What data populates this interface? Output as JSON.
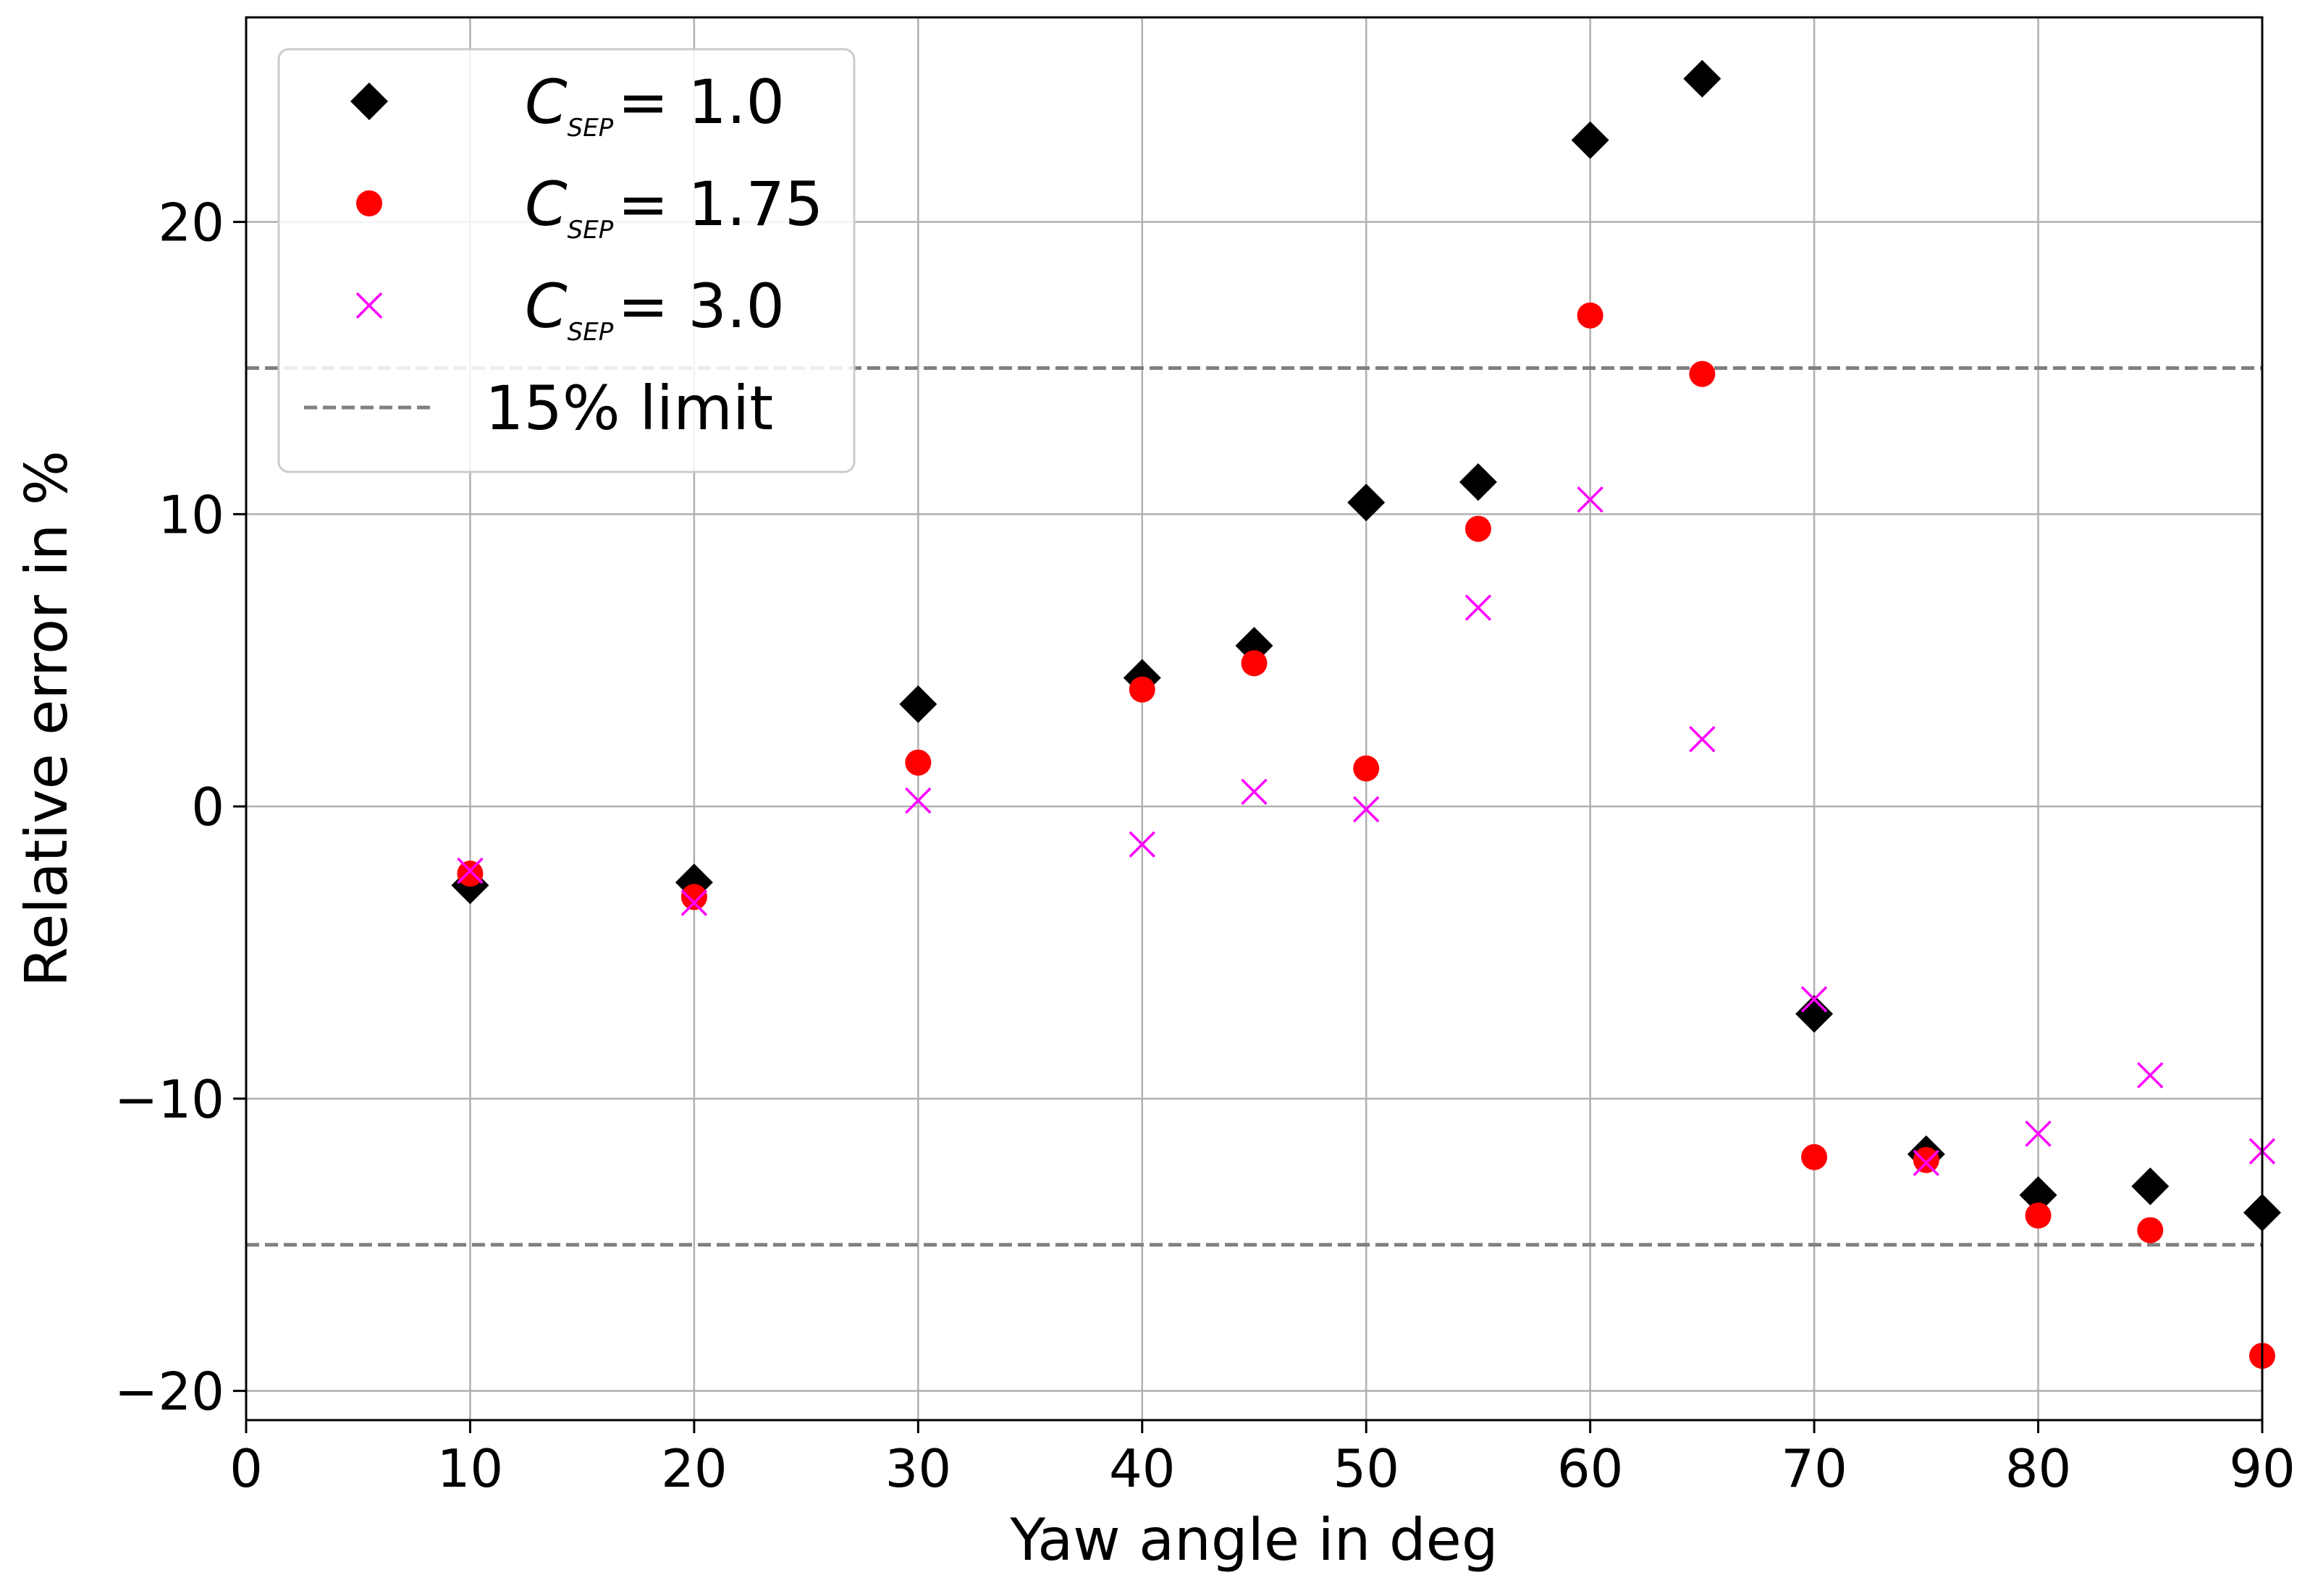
{
  "chart_data": {
    "type": "scatter",
    "title": "",
    "xlabel": "Yaw angle in deg",
    "ylabel": "Relative error in %",
    "xlim": [
      0,
      90
    ],
    "ylim": [
      -21,
      27
    ],
    "xticks": [
      0,
      10,
      20,
      30,
      40,
      50,
      60,
      70,
      80,
      90
    ],
    "xtick_labels": [
      "0",
      "10",
      "20",
      "30",
      "40",
      "50",
      "60",
      "70",
      "80",
      "90"
    ],
    "yticks": [
      -20,
      -10,
      0,
      10,
      20
    ],
    "ytick_labels": [
      "−20",
      "−10",
      "0",
      "10",
      "20"
    ],
    "grid": true,
    "legend_position": "top-left",
    "series": [
      {
        "name": "C_SEP = 1.0",
        "symbol": "C",
        "subscript": "SEP",
        "value_label": "= 1.0",
        "marker": "diamond",
        "color": "#000000",
        "x": [
          10,
          20,
          30,
          40,
          45,
          50,
          55,
          60,
          65,
          70,
          75,
          80,
          85,
          90
        ],
        "y": [
          -2.7,
          -2.6,
          3.5,
          4.4,
          5.5,
          10.4,
          11.1,
          22.8,
          24.9,
          -7.1,
          -11.9,
          -13.3,
          -13.0,
          -13.9
        ]
      },
      {
        "name": "C_SEP = 1.75",
        "symbol": "C",
        "subscript": "SEP",
        "value_label": "= 1.75",
        "marker": "circle",
        "color": "#ff0000",
        "x": [
          10,
          20,
          30,
          40,
          45,
          50,
          55,
          60,
          65,
          70,
          75,
          80,
          85,
          90
        ],
        "y": [
          -2.3,
          -3.1,
          1.5,
          4.0,
          4.9,
          1.3,
          9.5,
          16.8,
          14.8,
          -12.0,
          -12.1,
          -14.0,
          -14.5,
          -18.8
        ]
      },
      {
        "name": "C_SEP = 3.0",
        "symbol": "C",
        "subscript": "SEP",
        "value_label": "= 3.0",
        "marker": "x",
        "color": "#ff00ff",
        "x": [
          10,
          20,
          30,
          40,
          45,
          50,
          55,
          60,
          65,
          70,
          75,
          80,
          85,
          90
        ],
        "y": [
          -2.2,
          -3.3,
          0.2,
          -1.3,
          0.5,
          -0.1,
          6.8,
          10.5,
          2.3,
          -6.6,
          -12.2,
          -11.2,
          -9.2,
          -11.8
        ]
      }
    ],
    "reference_lines": [
      {
        "name": "15% limit",
        "y": 15,
        "style": "dashed",
        "color": "#808080"
      },
      {
        "name": "15% limit",
        "y": -15,
        "style": "dashed",
        "color": "#808080"
      }
    ],
    "legend_limit_label": "15% limit"
  }
}
